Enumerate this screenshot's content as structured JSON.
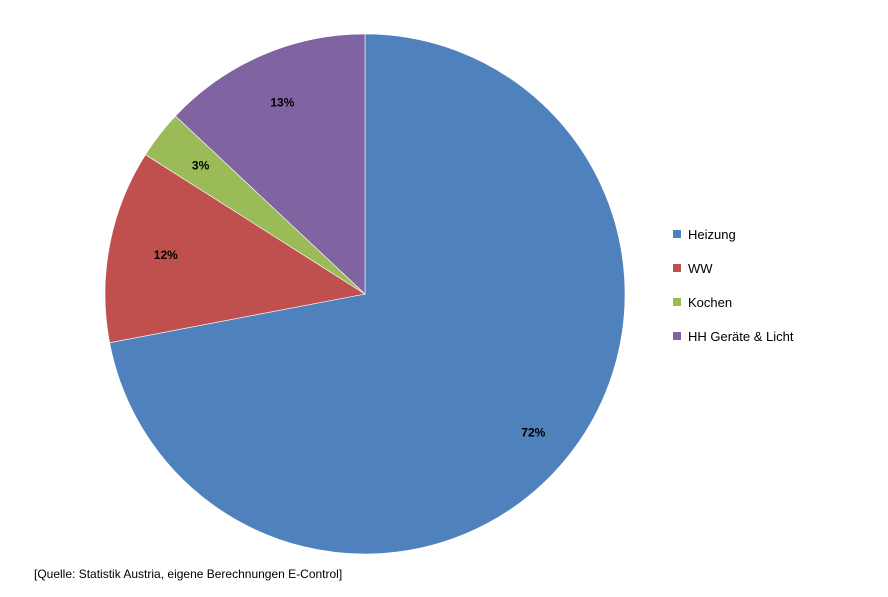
{
  "chart_data": {
    "type": "pie",
    "categories": [
      "Heizung",
      "WW",
      "Kochen",
      "HH Geräte & Licht"
    ],
    "values": [
      72,
      12,
      3,
      13
    ],
    "value_labels": [
      "72%",
      "12%",
      "3%",
      "13%"
    ],
    "colors": [
      "#4F81BD",
      "#C0504D",
      "#9BBB59",
      "#8064A2"
    ],
    "start_angle": "12 o'clock",
    "direction": "clockwise",
    "legend_placement": "right",
    "title": "",
    "source": "[Quelle: Statistik Austria, eigene Berechnungen E-Control]"
  }
}
